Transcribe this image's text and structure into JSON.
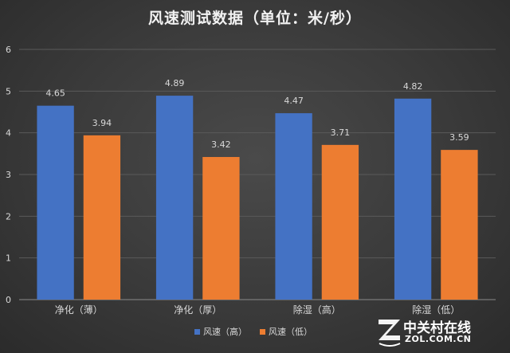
{
  "chart_data": {
    "type": "bar",
    "title": "风速测试数据（单位：米/秒）",
    "categories": [
      "净化（薄）",
      "净化（厚）",
      "除湿（高）",
      "除湿（低）"
    ],
    "series": [
      {
        "name": "风速（高）",
        "values": [
          4.65,
          4.89,
          4.47,
          4.82
        ],
        "color": "#4472c4"
      },
      {
        "name": "风速（低）",
        "values": [
          3.94,
          3.42,
          3.71,
          3.59
        ],
        "color": "#ed7d31"
      }
    ],
    "ylim": [
      0,
      6
    ],
    "yticks": [
      0,
      1,
      2,
      3,
      4,
      5,
      6
    ],
    "grid": true,
    "legend": "bottom",
    "xlabel": "",
    "ylabel": ""
  },
  "watermark": {
    "cn": "中关村在线",
    "en": "ZOL.COM.CN",
    "logo_letter": "Z"
  }
}
